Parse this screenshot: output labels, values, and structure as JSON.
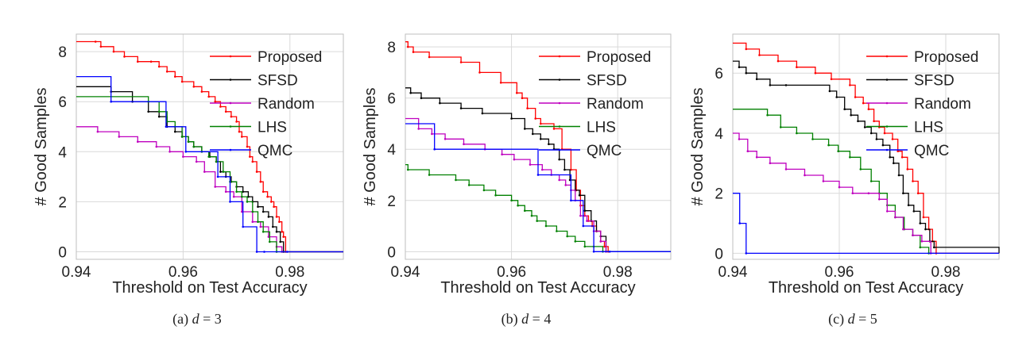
{
  "chart_data": [
    {
      "type": "line",
      "caption": "(a) d = 3",
      "caption_prefix": "(a)",
      "caption_var": "d",
      "caption_value": "= 3",
      "xlabel": "Threshold on Test Accuracy",
      "ylabel": "# Good Samples",
      "xlim": [
        0.94,
        0.99
      ],
      "ylim": [
        -0.3,
        8.7
      ],
      "xticks": [
        0.94,
        0.96,
        0.98
      ],
      "xtick_labels": [
        "0.94",
        "0.96",
        "0.98"
      ],
      "yticks": [
        0,
        2,
        4,
        6,
        8
      ],
      "ytick_labels": [
        "0",
        "2",
        "4",
        "6",
        "8"
      ],
      "grid": true,
      "legend_position": "upper-right",
      "series": [
        {
          "name": "Proposed",
          "color": "#ff0000",
          "x": [
            0.94,
            0.9436,
            0.9446,
            0.947,
            0.949,
            0.9515,
            0.954,
            0.9555,
            0.957,
            0.9585,
            0.9598,
            0.962,
            0.9635,
            0.9648,
            0.966,
            0.967,
            0.968,
            0.969,
            0.97,
            0.9705,
            0.971,
            0.972,
            0.9725,
            0.973,
            0.9738,
            0.9745,
            0.975,
            0.9758,
            0.9765,
            0.977,
            0.9775,
            0.978,
            0.9785,
            0.9788,
            0.9792,
            0.99
          ],
          "y": [
            8.4,
            8.4,
            8.2,
            8.0,
            7.8,
            7.6,
            7.6,
            7.4,
            7.2,
            7.0,
            6.8,
            6.6,
            6.4,
            6.2,
            6.0,
            5.8,
            5.6,
            5.4,
            5.2,
            4.8,
            4.6,
            4.2,
            3.8,
            3.6,
            3.2,
            2.8,
            2.4,
            2.2,
            2.0,
            1.8,
            1.4,
            1.2,
            0.8,
            0.6,
            0,
            0
          ]
        },
        {
          "name": "SFSD",
          "color": "#000000",
          "x": [
            0.94,
            0.9465,
            0.9505,
            0.9535,
            0.9555,
            0.957,
            0.9585,
            0.9598,
            0.961,
            0.962,
            0.9635,
            0.965,
            0.9662,
            0.967,
            0.968,
            0.969,
            0.97,
            0.9712,
            0.9722,
            0.973,
            0.974,
            0.975,
            0.976,
            0.9768,
            0.9775,
            0.9782,
            0.9788,
            0.99
          ],
          "y": [
            6.6,
            6.4,
            6.0,
            5.6,
            5.4,
            5.0,
            4.8,
            4.6,
            4.4,
            4.2,
            4.0,
            3.8,
            3.6,
            3.2,
            3.0,
            2.8,
            2.6,
            2.4,
            2.2,
            2.0,
            1.8,
            1.6,
            1.4,
            1.0,
            0.8,
            0.4,
            0,
            0
          ]
        },
        {
          "name": "Random",
          "color": "#bf00bf",
          "x": [
            0.94,
            0.944,
            0.948,
            0.9515,
            0.955,
            0.9575,
            0.96,
            0.9625,
            0.964,
            0.966,
            0.968,
            0.9695,
            0.971,
            0.973,
            0.9745,
            0.976,
            0.9775,
            0.9785,
            0.99
          ],
          "y": [
            5.0,
            4.8,
            4.6,
            4.4,
            4.2,
            4.0,
            3.8,
            3.6,
            3.2,
            2.6,
            2.4,
            2.2,
            1.6,
            1.2,
            1.0,
            0.6,
            0.2,
            0,
            0
          ]
        },
        {
          "name": "LHS",
          "color": "#008000",
          "x": [
            0.94,
            0.9535,
            0.9555,
            0.957,
            0.9585,
            0.9598,
            0.961,
            0.962,
            0.9635,
            0.9648,
            0.9662,
            0.9675,
            0.9688,
            0.97,
            0.971,
            0.972,
            0.973,
            0.974,
            0.975,
            0.9762,
            0.9775,
            0.99
          ],
          "y": [
            6.2,
            6.0,
            5.6,
            5.2,
            5.0,
            4.6,
            4.4,
            4.2,
            4.0,
            3.8,
            3.6,
            3.2,
            2.8,
            2.4,
            2.2,
            2.0,
            1.6,
            1.2,
            0.8,
            0.4,
            0,
            0
          ]
        },
        {
          "name": "QMC",
          "color": "#0000ff",
          "x": [
            0.94,
            0.9465,
            0.9568,
            0.9605,
            0.9665,
            0.9688,
            0.9712,
            0.9738,
            0.9752,
            0.9795,
            0.99
          ],
          "y": [
            7.0,
            6.0,
            5.0,
            4.0,
            3.0,
            2.0,
            1.0,
            0.0,
            0.0,
            0.0,
            0.0
          ]
        }
      ]
    },
    {
      "type": "line",
      "caption": "(b) d = 4",
      "caption_prefix": "(b)",
      "caption_var": "d",
      "caption_value": "= 4",
      "xlabel": "Threshold on Test Accuracy",
      "ylabel": "# Good Samples",
      "xlim": [
        0.94,
        0.99
      ],
      "ylim": [
        -0.3,
        8.5
      ],
      "xticks": [
        0.94,
        0.96,
        0.98
      ],
      "xtick_labels": [
        "0.94",
        "0.96",
        "0.98"
      ],
      "yticks": [
        0,
        2,
        4,
        6,
        8
      ],
      "ytick_labels": [
        "0",
        "2",
        "4",
        "6",
        "8"
      ],
      "grid": true,
      "legend_position": "upper-right",
      "series": [
        {
          "name": "Proposed",
          "color": "#ff0000",
          "x": [
            0.94,
            0.9405,
            0.9415,
            0.9445,
            0.9505,
            0.954,
            0.958,
            0.961,
            0.962,
            0.963,
            0.9645,
            0.9655,
            0.968,
            0.9695,
            0.9712,
            0.9722,
            0.973,
            0.9738,
            0.9745,
            0.9752,
            0.976,
            0.9768,
            0.9775,
            0.9782,
            0.99
          ],
          "y": [
            8.2,
            8.0,
            7.8,
            7.6,
            7.4,
            7.0,
            6.6,
            6.2,
            6.0,
            5.6,
            5.2,
            5.0,
            4.8,
            4.0,
            3.2,
            2.4,
            1.8,
            1.4,
            1.2,
            1.0,
            0.8,
            0.4,
            0.2,
            0,
            0
          ]
        },
        {
          "name": "SFSD",
          "color": "#000000",
          "x": [
            0.94,
            0.941,
            0.943,
            0.9465,
            0.9505,
            0.9545,
            0.96,
            0.9625,
            0.964,
            0.9655,
            0.967,
            0.968,
            0.969,
            0.97,
            0.971,
            0.972,
            0.9728,
            0.9738,
            0.975,
            0.976,
            0.9768,
            0.9778,
            0.99
          ],
          "y": [
            6.4,
            6.2,
            6.0,
            5.8,
            5.6,
            5.4,
            5.2,
            4.8,
            4.6,
            4.4,
            4.2,
            4.0,
            3.6,
            3.2,
            2.8,
            2.4,
            2.2,
            1.6,
            1.2,
            0.8,
            0.6,
            0,
            0
          ]
        },
        {
          "name": "Random",
          "color": "#bf00bf",
          "x": [
            0.94,
            0.9425,
            0.945,
            0.9475,
            0.951,
            0.955,
            0.9582,
            0.9605,
            0.9635,
            0.9658,
            0.9675,
            0.969,
            0.9702,
            0.9712,
            0.972,
            0.973,
            0.9742,
            0.9755,
            0.9768,
            0.9778,
            0.99
          ],
          "y": [
            5.2,
            4.8,
            4.6,
            4.4,
            4.2,
            4.0,
            3.8,
            3.6,
            3.4,
            3.2,
            3.0,
            2.8,
            2.6,
            2.4,
            2.0,
            1.4,
            1.2,
            0.8,
            0.4,
            0,
            0
          ]
        },
        {
          "name": "LHS",
          "color": "#008000",
          "x": [
            0.94,
            0.9405,
            0.9445,
            0.9495,
            0.952,
            0.9548,
            0.957,
            0.96,
            0.9612,
            0.9625,
            0.9638,
            0.9648,
            0.9665,
            0.9685,
            0.9705,
            0.972,
            0.9738,
            0.9755,
            0.9772,
            0.99
          ],
          "y": [
            3.4,
            3.2,
            3.0,
            2.8,
            2.6,
            2.4,
            2.2,
            2.0,
            1.8,
            1.6,
            1.4,
            1.2,
            1.0,
            0.8,
            0.6,
            0.4,
            0.2,
            0.2,
            0,
            0
          ]
        },
        {
          "name": "QMC",
          "color": "#0000ff",
          "x": [
            0.94,
            0.9455,
            0.965,
            0.9712,
            0.9735,
            0.9755,
            0.9785,
            0.99
          ],
          "y": [
            5.0,
            4.0,
            3.0,
            2.0,
            1.0,
            0.0,
            0.0,
            0.0
          ]
        }
      ]
    },
    {
      "type": "line",
      "caption": "(c) d = 5",
      "caption_prefix": "(c)",
      "caption_var": "d",
      "caption_value": "= 5",
      "xlabel": "Threshold on Test Accuracy",
      "ylabel": "# Good Samples",
      "xlim": [
        0.94,
        0.99
      ],
      "ylim": [
        -0.2,
        7.3
      ],
      "xticks": [
        0.94,
        0.96,
        0.98
      ],
      "xtick_labels": [
        "0.94",
        "0.96",
        "0.98"
      ],
      "yticks": [
        0,
        2,
        4,
        6
      ],
      "ytick_labels": [
        "0",
        "2",
        "4",
        "6"
      ],
      "grid": true,
      "legend_position": "upper-right",
      "series": [
        {
          "name": "Proposed",
          "color": "#ff0000",
          "x": [
            0.94,
            0.9425,
            0.945,
            0.9485,
            0.952,
            0.9555,
            0.9585,
            0.962,
            0.963,
            0.9645,
            0.9655,
            0.9665,
            0.9675,
            0.9685,
            0.97,
            0.971,
            0.9718,
            0.9728,
            0.9738,
            0.9748,
            0.9758,
            0.9768,
            0.9775,
            0.9782,
            0.99
          ],
          "y": [
            7.0,
            6.8,
            6.6,
            6.4,
            6.2,
            6.0,
            5.8,
            5.6,
            5.2,
            5.0,
            4.8,
            4.4,
            4.2,
            4.0,
            3.8,
            3.4,
            3.2,
            2.8,
            2.4,
            2.0,
            1.2,
            0.8,
            0.4,
            0,
            0
          ]
        },
        {
          "name": "SFSD",
          "color": "#000000",
          "x": [
            0.94,
            0.9412,
            0.9425,
            0.9445,
            0.947,
            0.95,
            0.9582,
            0.9595,
            0.961,
            0.9622,
            0.9635,
            0.9648,
            0.966,
            0.967,
            0.9682,
            0.9695,
            0.9702,
            0.9712,
            0.972,
            0.973,
            0.974,
            0.9752,
            0.9762,
            0.977,
            0.9778,
            0.99
          ],
          "y": [
            6.4,
            6.2,
            6.0,
            5.8,
            5.6,
            5.6,
            5.4,
            5.2,
            4.8,
            4.6,
            4.4,
            4.2,
            4.0,
            3.8,
            3.6,
            3.2,
            3.0,
            2.6,
            2.0,
            1.6,
            1.4,
            1.0,
            0.8,
            0.4,
            0.2,
            0
          ]
        },
        {
          "name": "LHS",
          "color": "#008000",
          "x": [
            0.94,
            0.9465,
            0.949,
            0.952,
            0.955,
            0.958,
            0.9598,
            0.962,
            0.964,
            0.966,
            0.9675,
            0.969,
            0.9705,
            0.9722,
            0.9738,
            0.9752,
            0.9768,
            0.99
          ],
          "y": [
            4.8,
            4.6,
            4.2,
            4.0,
            3.8,
            3.6,
            3.4,
            3.2,
            2.8,
            2.4,
            2.0,
            1.6,
            1.2,
            0.8,
            0.6,
            0.2,
            0,
            0
          ]
        },
        {
          "name": "Random",
          "color": "#bf00bf",
          "x": [
            0.94,
            0.9412,
            0.9428,
            0.9445,
            0.947,
            0.95,
            0.9535,
            0.957,
            0.96,
            0.9625,
            0.9655,
            0.9675,
            0.969,
            0.9705,
            0.972,
            0.9738,
            0.9755,
            0.9772,
            0.99
          ],
          "y": [
            4.0,
            3.8,
            3.4,
            3.2,
            3.0,
            2.8,
            2.6,
            2.4,
            2.2,
            2.0,
            2.0,
            1.8,
            1.4,
            1.2,
            0.8,
            0.6,
            0.4,
            0,
            0
          ]
        },
        {
          "name": "QMC",
          "color": "#0000ff",
          "x": [
            0.94,
            0.9413,
            0.9425,
            0.99
          ],
          "y": [
            2.0,
            1.0,
            0.0,
            0.0
          ]
        }
      ]
    }
  ]
}
